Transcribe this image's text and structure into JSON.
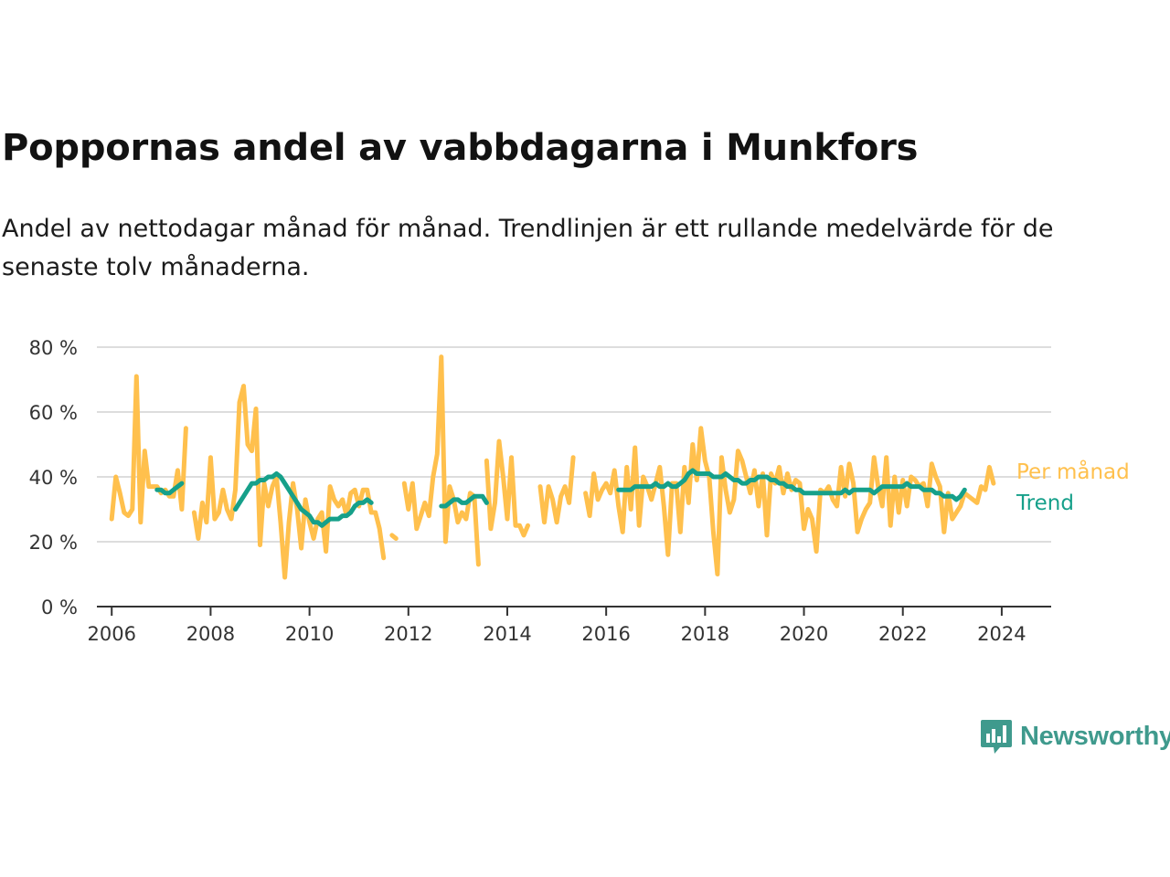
{
  "title": "Poppornas andel av vabbdagarna i Munkfors",
  "subtitle": "Andel av nettodagar månad för månad. Trendlinjen är ett rullande medelvärde för de senaste tolv månaderna.",
  "brand": "Newsworthy",
  "colors": {
    "per_month": "#ffc04d",
    "trend": "#16a08a",
    "grid": "#dddddd",
    "axis": "#333333",
    "brand": "#3f9a8d"
  },
  "chart_data": {
    "type": "line",
    "title": "Poppornas andel av vabbdagarna i Munkfors",
    "xlabel": "",
    "ylabel": "",
    "xlim": [
      2005.7,
      2025.0
    ],
    "ylim": [
      0,
      80
    ],
    "x_ticks": [
      "2006",
      "2008",
      "2010",
      "2012",
      "2014",
      "2016",
      "2018",
      "2020",
      "2022",
      "2024"
    ],
    "y_ticks": [
      "0 %",
      "20 %",
      "40 %",
      "60 %",
      "80 %"
    ],
    "y_tick_values": [
      0,
      20,
      40,
      60,
      80
    ],
    "grid": true,
    "legend": "end-of-line labels (right)",
    "series": [
      {
        "name": "Per månad",
        "start": "2006-01",
        "values": [
          27,
          40,
          35,
          29,
          28,
          30,
          71,
          26,
          48,
          37,
          37,
          37,
          35,
          36,
          34,
          34,
          42,
          30,
          55,
          null,
          29,
          21,
          32,
          26,
          46,
          27,
          29,
          36,
          30,
          27,
          36,
          63,
          68,
          50,
          48,
          61,
          19,
          38,
          31,
          37,
          40,
          26,
          9,
          26,
          38,
          30,
          18,
          33,
          26,
          21,
          27,
          29,
          17,
          37,
          33,
          31,
          33,
          28,
          35,
          36,
          31,
          36,
          36,
          29,
          29,
          24,
          15,
          null,
          22,
          21,
          null,
          38,
          30,
          38,
          24,
          28,
          32,
          28,
          40,
          47,
          77,
          20,
          37,
          33,
          26,
          29,
          27,
          35,
          34,
          13,
          null,
          45,
          24,
          32,
          51,
          40,
          27,
          46,
          25,
          25,
          22,
          25,
          null,
          null,
          37,
          26,
          37,
          33,
          26,
          34,
          37,
          32,
          46,
          null,
          null,
          35,
          28,
          41,
          33,
          36,
          38,
          35,
          42,
          31,
          23,
          43,
          30,
          49,
          25,
          40,
          37,
          33,
          38,
          43,
          31,
          16,
          38,
          38,
          23,
          43,
          32,
          50,
          39,
          55,
          45,
          40,
          23,
          10,
          46,
          36,
          29,
          33,
          48,
          45,
          40,
          35,
          42,
          31,
          41,
          22,
          41,
          38,
          43,
          35,
          41,
          36,
          39,
          38,
          24,
          30,
          27,
          17,
          36,
          35,
          37,
          33,
          31,
          43,
          34,
          44,
          38,
          23,
          27,
          30,
          32,
          46,
          37,
          31,
          46,
          25,
          40,
          29,
          39,
          31,
          40,
          39,
          37,
          38,
          31,
          44,
          40,
          37,
          23,
          35,
          27,
          29,
          31,
          35,
          34,
          33,
          32,
          37,
          36,
          43,
          38
        ],
        "color": "#ffc04d"
      },
      {
        "name": "Trend",
        "start": "2006-01",
        "values": [
          null,
          null,
          null,
          null,
          null,
          null,
          null,
          null,
          null,
          null,
          null,
          36,
          36,
          35,
          35,
          36,
          37,
          38,
          null,
          null,
          null,
          null,
          null,
          null,
          null,
          null,
          null,
          null,
          null,
          null,
          30,
          32,
          34,
          36,
          38,
          38,
          39,
          39,
          40,
          40,
          41,
          40,
          38,
          36,
          34,
          32,
          30,
          29,
          28,
          26,
          26,
          25,
          26,
          27,
          27,
          27,
          28,
          28,
          29,
          31,
          32,
          32,
          33,
          32,
          null,
          null,
          null,
          null,
          null,
          null,
          null,
          null,
          null,
          null,
          null,
          null,
          null,
          null,
          null,
          null,
          31,
          31,
          32,
          33,
          33,
          32,
          32,
          33,
          34,
          34,
          34,
          32,
          null,
          null,
          null,
          null,
          null,
          null,
          null,
          null,
          null,
          null,
          null,
          null,
          null,
          null,
          null,
          null,
          null,
          null,
          null,
          null,
          null,
          null,
          null,
          null,
          null,
          null,
          null,
          null,
          null,
          null,
          null,
          36,
          36,
          36,
          36,
          37,
          37,
          37,
          37,
          37,
          38,
          37,
          37,
          38,
          37,
          37,
          38,
          39,
          41,
          42,
          41,
          41,
          41,
          41,
          40,
          40,
          40,
          41,
          40,
          39,
          39,
          38,
          38,
          39,
          39,
          40,
          40,
          40,
          39,
          39,
          38,
          38,
          37,
          37,
          36,
          36,
          35,
          35,
          35,
          35,
          35,
          35,
          35,
          35,
          35,
          35,
          36,
          35,
          36,
          36,
          36,
          36,
          36,
          35,
          36,
          37,
          37,
          37,
          37,
          37,
          37,
          38,
          37,
          37,
          37,
          36,
          36,
          36,
          35,
          35,
          34,
          34,
          34,
          33,
          34,
          36
        ]
      }
    ]
  }
}
